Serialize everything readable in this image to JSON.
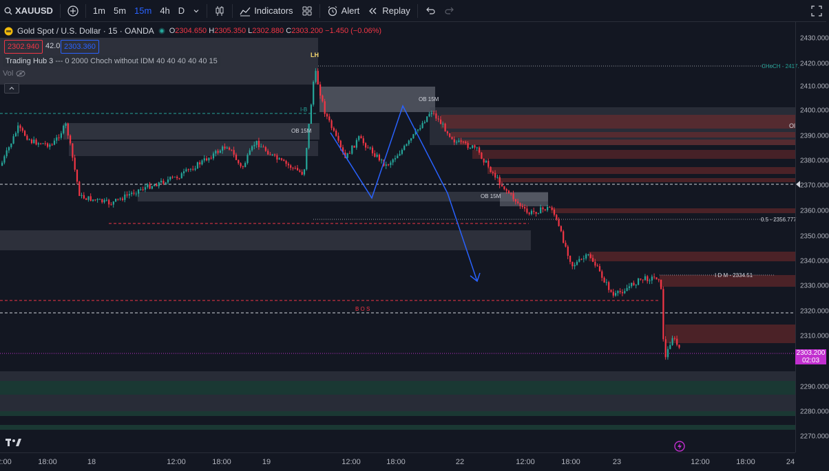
{
  "toolbar": {
    "symbol": "XAUUSD",
    "timeframes": [
      "1m",
      "5m",
      "15m",
      "4h",
      "D"
    ],
    "active_timeframe": "15m",
    "indicators_label": "Indicators",
    "alert_label": "Alert",
    "replay_label": "Replay"
  },
  "legend": {
    "title": "Gold Spot / U.S. Dollar · 15 · OANDA",
    "o_label": "O",
    "o": "2304.650",
    "h_label": "H",
    "h": "2305.350",
    "l_label": "L",
    "l": "2302.880",
    "c_label": "C",
    "c": "2303.200",
    "change": "−1.450 (−0.06%)",
    "sell_price": "2302.940",
    "spread": "42.0",
    "buy_price": "2303.360",
    "indicator_name": "Trading Hub 3",
    "indicator_params": "--- 0 2000 Choch without IDM 40 40 40 40 40 15",
    "vol_label": "Vol"
  },
  "annotations": {
    "lh": "LH",
    "ib": "I-B",
    "ob1": "OB 15M",
    "ob2": "OB 15M",
    "ob3": "OB 15M",
    "choch": "CHoCH - 2417.",
    "fib": "0.5 - 2356.777",
    "idm": "I D M - 2334.51",
    "bos": "B O S",
    "ol": "Ol"
  },
  "price_axis": [
    "2430.000",
    "2420.000",
    "2410.000",
    "2400.000",
    "2390.000",
    "2380.000",
    "2370.000",
    "2360.000",
    "2350.000",
    "2340.000",
    "2330.000",
    "2320.000",
    "2310.000",
    "2290.000",
    "2280.000",
    "2270.000"
  ],
  "last_price": {
    "price": "2303.200",
    "countdown": "02:03"
  },
  "time_axis": [
    "2:00",
    "18:00",
    "18",
    "12:00",
    "18:00",
    "19",
    "12:00",
    "18:00",
    "22",
    "12:00",
    "18:00",
    "23",
    "12:00",
    "18:00",
    "24"
  ],
  "colors": {
    "up": "#26a69a",
    "down": "#f23645",
    "accent": "#2962ff",
    "lastprice": "#c12fcf"
  }
}
